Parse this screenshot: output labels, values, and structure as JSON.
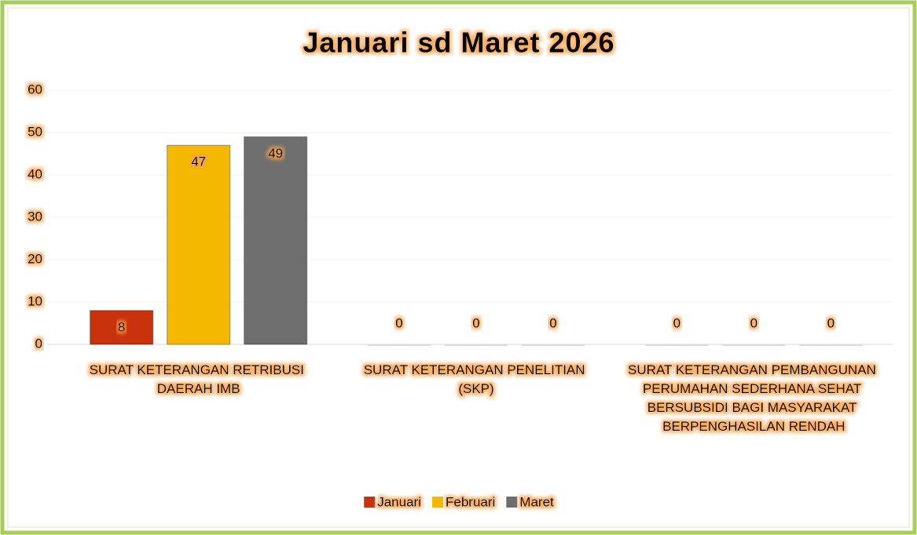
{
  "chart_data": {
    "type": "bar",
    "title": "Januari sd Maret 2026",
    "categories": [
      "SURAT KETERANGAN RETRIBUSI DAERAH IMB",
      "SURAT KETERANGAN PENELITIAN (SKP)",
      "SURAT KETERANGAN PEMBANGUNAN PERUMAHAN SEDERHANA SEHAT BERSUBSIDI BAGI MASYARAKAT BERPENGHASILAN RENDAH"
    ],
    "series": [
      {
        "name": "Januari",
        "color": "#c8320c",
        "values": [
          8,
          0,
          0
        ]
      },
      {
        "name": "Februari",
        "color": "#f5b800",
        "values": [
          47,
          0,
          0
        ]
      },
      {
        "name": "Maret",
        "color": "#6e6e6e",
        "values": [
          49,
          0,
          0
        ]
      }
    ],
    "ylim": [
      0,
      60
    ],
    "yticks": [
      0,
      10,
      20,
      30,
      40,
      50,
      60
    ],
    "grid": true,
    "legend": "bottom"
  }
}
